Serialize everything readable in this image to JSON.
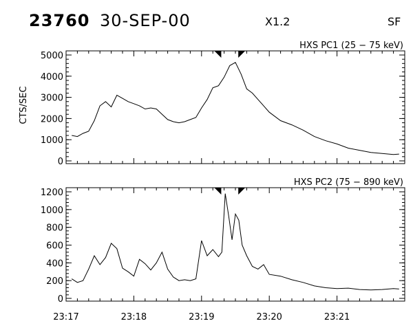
{
  "header": {
    "event_number": "23760",
    "date": "30-SEP-00",
    "goes_class": "X1.2",
    "flag": "SF"
  },
  "chart_data": [
    {
      "type": "line",
      "title": "HXS PC1 (25 − 75 keV)",
      "ylabel": "CTS/SEC",
      "ylim": [
        0,
        5000
      ],
      "yticks": [
        0,
        1000,
        2000,
        3000,
        4000,
        5000
      ],
      "xlim": [
        "23:17:00",
        "23:22:00"
      ],
      "markers": [
        "23:19:15",
        "23:19:35"
      ],
      "x": [
        "23:17:05",
        "23:17:10",
        "23:17:15",
        "23:17:20",
        "23:17:25",
        "23:17:30",
        "23:17:35",
        "23:17:40",
        "23:17:45",
        "23:17:50",
        "23:17:55",
        "23:18:00",
        "23:18:05",
        "23:18:10",
        "23:18:15",
        "23:18:20",
        "23:18:25",
        "23:18:30",
        "23:18:35",
        "23:18:40",
        "23:18:45",
        "23:18:50",
        "23:18:55",
        "23:19:00",
        "23:19:05",
        "23:19:10",
        "23:19:15",
        "23:19:20",
        "23:19:25",
        "23:19:30",
        "23:19:35",
        "23:19:40",
        "23:19:45",
        "23:19:50",
        "23:19:55",
        "23:20:00",
        "23:20:10",
        "23:20:20",
        "23:20:30",
        "23:20:40",
        "23:20:50",
        "23:21:00",
        "23:21:10",
        "23:21:20",
        "23:21:30",
        "23:21:40",
        "23:21:50",
        "23:21:55"
      ],
      "values": [
        1200,
        1150,
        1300,
        1400,
        1900,
        2600,
        2800,
        2550,
        3100,
        2950,
        2800,
        2700,
        2600,
        2450,
        2500,
        2450,
        2200,
        1950,
        1850,
        1800,
        1850,
        1950,
        2050,
        2500,
        2900,
        3450,
        3550,
        3950,
        4500,
        4650,
        4100,
        3400,
        3200,
        2900,
        2600,
        2300,
        1900,
        1700,
        1450,
        1150,
        950,
        800,
        600,
        500,
        400,
        350,
        300,
        320
      ],
      "stroke": "#000000"
    },
    {
      "type": "line",
      "title": "HXS PC2 (75 − 890 keV)",
      "ylabel": "",
      "ylim": [
        0,
        1200
      ],
      "yticks": [
        0,
        200,
        400,
        600,
        800,
        1000,
        1200
      ],
      "xlim": [
        "23:17:00",
        "23:22:00"
      ],
      "xticklabels": [
        "23:17",
        "23:18",
        "23:19",
        "23:20",
        "23:21"
      ],
      "markers": [
        "23:19:15",
        "23:19:35"
      ],
      "x": [
        "23:17:05",
        "23:17:10",
        "23:17:15",
        "23:17:20",
        "23:17:25",
        "23:17:30",
        "23:17:35",
        "23:17:40",
        "23:17:45",
        "23:17:50",
        "23:17:55",
        "23:18:00",
        "23:18:05",
        "23:18:10",
        "23:18:15",
        "23:18:20",
        "23:18:25",
        "23:18:30",
        "23:18:35",
        "23:18:40",
        "23:18:45",
        "23:18:50",
        "23:18:55",
        "23:19:00",
        "23:19:05",
        "23:19:10",
        "23:19:15",
        "23:19:18",
        "23:19:21",
        "23:19:24",
        "23:19:27",
        "23:19:30",
        "23:19:33",
        "23:19:36",
        "23:19:40",
        "23:19:45",
        "23:19:50",
        "23:19:55",
        "23:20:00",
        "23:20:10",
        "23:20:20",
        "23:20:30",
        "23:20:40",
        "23:20:50",
        "23:21:00",
        "23:21:10",
        "23:21:20",
        "23:21:30",
        "23:21:40",
        "23:21:50",
        "23:21:55"
      ],
      "values": [
        220,
        180,
        200,
        330,
        480,
        380,
        460,
        620,
        560,
        340,
        300,
        250,
        440,
        390,
        320,
        400,
        520,
        330,
        240,
        200,
        210,
        200,
        220,
        650,
        480,
        550,
        470,
        520,
        1180,
        930,
        660,
        950,
        880,
        600,
        480,
        360,
        330,
        380,
        270,
        250,
        210,
        180,
        140,
        120,
        110,
        115,
        100,
        95,
        100,
        110,
        105
      ],
      "stroke": "#000000"
    }
  ]
}
